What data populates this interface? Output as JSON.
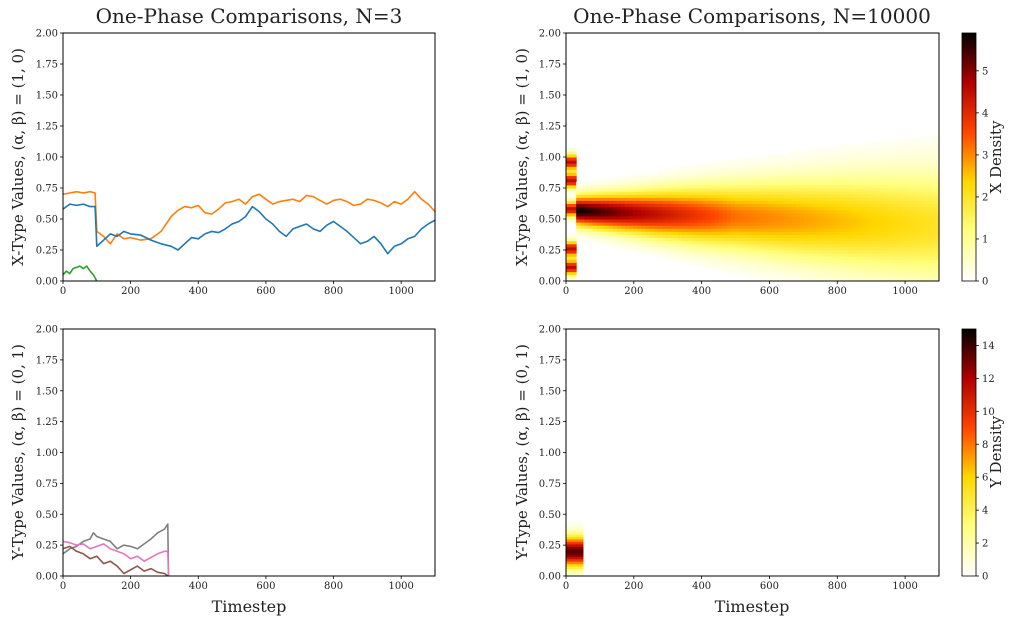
{
  "chart_data": [
    {
      "type": "line",
      "title": "One-Phase Comparisons, N=3",
      "ylabel": "X-Type Values, (α, β) = (1, 0)",
      "xlabel": "",
      "xlim": [
        0,
        1100
      ],
      "ylim": [
        0,
        2
      ],
      "xticks": [
        "0",
        "200",
        "400",
        "600",
        "800",
        "1000"
      ],
      "yticks": [
        "0.00",
        "0.25",
        "0.50",
        "0.75",
        "1.00",
        "1.25",
        "1.50",
        "1.75",
        "2.00"
      ],
      "series": [
        {
          "color": "#ff7f0e",
          "x": [
            0,
            20,
            40,
            60,
            80,
            95,
            100,
            120,
            140,
            160,
            180,
            200,
            230,
            260,
            290,
            320,
            340,
            360,
            380,
            400,
            420,
            440,
            460,
            480,
            500,
            520,
            540,
            560,
            580,
            600,
            620,
            640,
            660,
            680,
            700,
            720,
            740,
            760,
            780,
            800,
            820,
            840,
            860,
            880,
            900,
            920,
            940,
            960,
            980,
            1000,
            1020,
            1040,
            1060,
            1080,
            1100
          ],
          "y": [
            0.7,
            0.71,
            0.72,
            0.71,
            0.72,
            0.71,
            0.4,
            0.36,
            0.3,
            0.38,
            0.34,
            0.35,
            0.33,
            0.34,
            0.4,
            0.52,
            0.57,
            0.6,
            0.59,
            0.61,
            0.55,
            0.54,
            0.58,
            0.63,
            0.64,
            0.66,
            0.62,
            0.68,
            0.7,
            0.66,
            0.62,
            0.64,
            0.65,
            0.66,
            0.64,
            0.69,
            0.68,
            0.65,
            0.62,
            0.65,
            0.66,
            0.64,
            0.61,
            0.62,
            0.66,
            0.65,
            0.63,
            0.6,
            0.64,
            0.62,
            0.66,
            0.72,
            0.66,
            0.62,
            0.56
          ]
        },
        {
          "color": "#1f77b4",
          "x": [
            0,
            20,
            40,
            60,
            80,
            95,
            100,
            120,
            140,
            160,
            180,
            200,
            230,
            260,
            290,
            320,
            340,
            360,
            380,
            400,
            420,
            440,
            460,
            480,
            500,
            520,
            540,
            560,
            580,
            600,
            620,
            640,
            660,
            680,
            700,
            720,
            740,
            760,
            780,
            800,
            820,
            840,
            860,
            880,
            900,
            920,
            940,
            960,
            980,
            1000,
            1020,
            1040,
            1060,
            1080,
            1100
          ],
          "y": [
            0.58,
            0.62,
            0.61,
            0.62,
            0.6,
            0.6,
            0.28,
            0.33,
            0.38,
            0.36,
            0.4,
            0.38,
            0.37,
            0.33,
            0.3,
            0.28,
            0.25,
            0.3,
            0.35,
            0.34,
            0.38,
            0.4,
            0.39,
            0.42,
            0.46,
            0.48,
            0.52,
            0.6,
            0.56,
            0.5,
            0.46,
            0.4,
            0.36,
            0.42,
            0.44,
            0.46,
            0.42,
            0.4,
            0.45,
            0.48,
            0.44,
            0.4,
            0.35,
            0.3,
            0.32,
            0.36,
            0.3,
            0.22,
            0.28,
            0.3,
            0.34,
            0.36,
            0.42,
            0.46,
            0.49
          ]
        },
        {
          "color": "#2ca02c",
          "x": [
            0,
            10,
            20,
            30,
            40,
            50,
            60,
            70,
            80,
            90,
            100
          ],
          "y": [
            0.05,
            0.08,
            0.06,
            0.1,
            0.11,
            0.12,
            0.1,
            0.12,
            0.08,
            0.05,
            0.0
          ]
        }
      ]
    },
    {
      "type": "heatmap",
      "title": "One-Phase Comparisons, N=10000",
      "ylabel": "X-Type Values, (α, β) = (1, 0)",
      "xlabel": "",
      "xlim": [
        0,
        1100
      ],
      "ylim": [
        0,
        2
      ],
      "xticks": [
        "0",
        "200",
        "400",
        "600",
        "800",
        "1000"
      ],
      "yticks": [
        "0.00",
        "0.25",
        "0.50",
        "0.75",
        "1.00",
        "1.25",
        "1.50",
        "1.75",
        "2.00"
      ],
      "colorbar": {
        "label": "X Density",
        "ticks": [
          "0",
          "1",
          "2",
          "3",
          "4",
          "5"
        ],
        "max": 5.9
      },
      "center_line": [
        [
          30,
          0.57
        ],
        [
          200,
          0.55
        ],
        [
          500,
          0.52
        ],
        [
          1100,
          0.45
        ]
      ],
      "spread_line": [
        [
          30,
          0.07
        ],
        [
          200,
          0.1
        ],
        [
          500,
          0.16
        ],
        [
          1100,
          0.27
        ]
      ],
      "peak_line": [
        [
          30,
          5.9
        ],
        [
          200,
          4.8
        ],
        [
          500,
          3.2
        ],
        [
          1100,
          2.0
        ]
      ]
    },
    {
      "type": "line",
      "title": "",
      "ylabel": "Y-Type Values, (α, β) = (0, 1)",
      "xlabel": "Timestep",
      "xlim": [
        0,
        1100
      ],
      "ylim": [
        0,
        2
      ],
      "xticks": [
        "0",
        "200",
        "400",
        "600",
        "800",
        "1000"
      ],
      "yticks": [
        "0.00",
        "0.25",
        "0.50",
        "0.75",
        "1.00",
        "1.25",
        "1.50",
        "1.75",
        "2.00"
      ],
      "series": [
        {
          "color": "#7f7f7f",
          "x": [
            0,
            20,
            40,
            60,
            80,
            90,
            100,
            120,
            140,
            160,
            180,
            200,
            220,
            240,
            260,
            280,
            300,
            310,
            312
          ],
          "y": [
            0.18,
            0.22,
            0.24,
            0.28,
            0.3,
            0.35,
            0.32,
            0.3,
            0.28,
            0.22,
            0.25,
            0.24,
            0.22,
            0.26,
            0.3,
            0.35,
            0.38,
            0.42,
            0.0
          ]
        },
        {
          "color": "#e377c2",
          "x": [
            0,
            20,
            40,
            60,
            80,
            100,
            120,
            140,
            160,
            180,
            200,
            220,
            240,
            260,
            280,
            300,
            310,
            312
          ],
          "y": [
            0.28,
            0.27,
            0.25,
            0.26,
            0.22,
            0.24,
            0.26,
            0.22,
            0.2,
            0.18,
            0.14,
            0.16,
            0.12,
            0.15,
            0.18,
            0.2,
            0.2,
            0.0
          ]
        },
        {
          "color": "#8c564b",
          "x": [
            0,
            20,
            40,
            60,
            80,
            100,
            120,
            140,
            160,
            180,
            200,
            220,
            240,
            260,
            280,
            300,
            310
          ],
          "y": [
            0.22,
            0.24,
            0.2,
            0.18,
            0.14,
            0.16,
            0.1,
            0.12,
            0.08,
            0.02,
            0.05,
            0.08,
            0.04,
            0.06,
            0.03,
            0.02,
            0.0
          ]
        }
      ]
    },
    {
      "type": "heatmap",
      "title": "",
      "ylabel": "Y-Type Values, (α, β) = (0, 1)",
      "xlabel": "Timestep",
      "xlim": [
        0,
        1100
      ],
      "ylim": [
        0,
        2
      ],
      "xticks": [
        "0",
        "200",
        "400",
        "600",
        "800",
        "1000"
      ],
      "yticks": [
        "0.00",
        "0.25",
        "0.50",
        "0.75",
        "1.00",
        "1.25",
        "1.50",
        "1.75",
        "2.00"
      ],
      "colorbar": {
        "label": "Y Density",
        "ticks": [
          "0",
          "2",
          "4",
          "6",
          "8",
          "10",
          "12",
          "14"
        ],
        "max": 15
      },
      "blob": {
        "x_range": [
          0,
          50
        ],
        "center": 0.2,
        "spread": 0.08,
        "peak": 15
      }
    }
  ]
}
